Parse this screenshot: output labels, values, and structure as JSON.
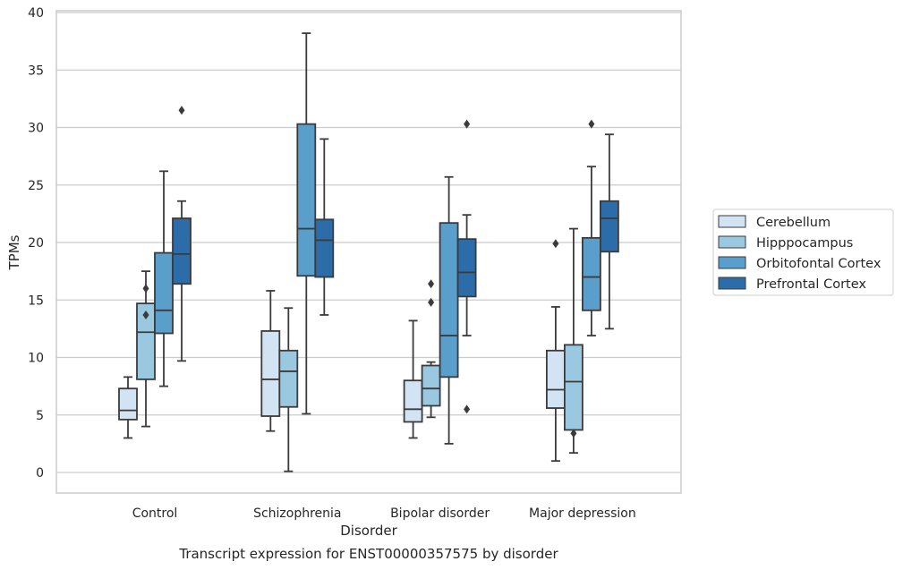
{
  "chart_data": {
    "type": "box",
    "caption": "Transcript expression for ENST00000357575 by disorder",
    "xlabel": "Disorder",
    "ylabel": "TPMs",
    "ylim": [
      -1.7,
      40.3
    ],
    "yticks": [
      0,
      5,
      10,
      15,
      20,
      25,
      30,
      35,
      40
    ],
    "grid": true,
    "legend_position": "right",
    "categories": [
      "Control",
      "Schizophrenia",
      "Bipolar disorder",
      "Major depression"
    ],
    "series": [
      {
        "name": "Cerebellum",
        "color": "#d2e3f3",
        "boxes": [
          {
            "min": 3.0,
            "q1": 4.6,
            "median": 5.4,
            "q3": 7.3,
            "max": 8.3,
            "outliers": []
          },
          {
            "min": 3.6,
            "q1": 4.9,
            "median": 8.1,
            "q3": 12.3,
            "max": 15.8,
            "outliers": []
          },
          {
            "min": 3.0,
            "q1": 4.4,
            "median": 5.5,
            "q3": 8.0,
            "max": 13.2,
            "outliers": []
          },
          {
            "min": 1.0,
            "q1": 5.6,
            "median": 7.2,
            "q3": 10.6,
            "max": 14.4,
            "outliers": [
              19.9
            ]
          }
        ]
      },
      {
        "name": "Hipppocampus",
        "color": "#9ac8e0",
        "boxes": [
          {
            "min": 4.0,
            "q1": 8.1,
            "median": 12.2,
            "q3": 14.7,
            "max": 17.5,
            "outliers": [
              16.0,
              13.7
            ]
          },
          {
            "min": 0.1,
            "q1": 5.7,
            "median": 8.8,
            "q3": 10.6,
            "max": 14.3,
            "outliers": []
          },
          {
            "min": 4.8,
            "q1": 5.8,
            "median": 7.3,
            "q3": 9.3,
            "max": 9.6,
            "outliers": [
              16.4,
              14.8
            ]
          },
          {
            "min": 1.7,
            "q1": 3.7,
            "median": 7.9,
            "q3": 11.1,
            "max": 21.2,
            "outliers": [
              3.4
            ]
          }
        ]
      },
      {
        "name": "Orbitofontal Cortex",
        "color": "#5a9fcc",
        "boxes": [
          {
            "min": 7.5,
            "q1": 12.1,
            "median": 14.1,
            "q3": 19.1,
            "max": 26.2,
            "outliers": []
          },
          {
            "min": 5.1,
            "q1": 17.1,
            "median": 21.2,
            "q3": 30.3,
            "max": 38.2,
            "outliers": []
          },
          {
            "min": 2.5,
            "q1": 8.3,
            "median": 11.9,
            "q3": 21.7,
            "max": 25.7,
            "outliers": []
          },
          {
            "min": 11.9,
            "q1": 14.1,
            "median": 17.0,
            "q3": 20.4,
            "max": 26.6,
            "outliers": [
              30.3
            ]
          }
        ]
      },
      {
        "name": "Prefrontal Cortex",
        "color": "#2b6ca9",
        "boxes": [
          {
            "min": 9.7,
            "q1": 16.4,
            "median": 19.0,
            "q3": 22.1,
            "max": 23.6,
            "outliers": [
              31.5
            ]
          },
          {
            "min": 13.7,
            "q1": 17.0,
            "median": 20.2,
            "q3": 22.0,
            "max": 29.0,
            "outliers": []
          },
          {
            "min": 11.9,
            "q1": 15.3,
            "median": 17.4,
            "q3": 20.3,
            "max": 22.4,
            "outliers": [
              30.3,
              5.5
            ]
          },
          {
            "min": 12.5,
            "q1": 19.2,
            "median": 22.1,
            "q3": 23.6,
            "max": 29.4,
            "outliers": []
          }
        ]
      }
    ]
  }
}
